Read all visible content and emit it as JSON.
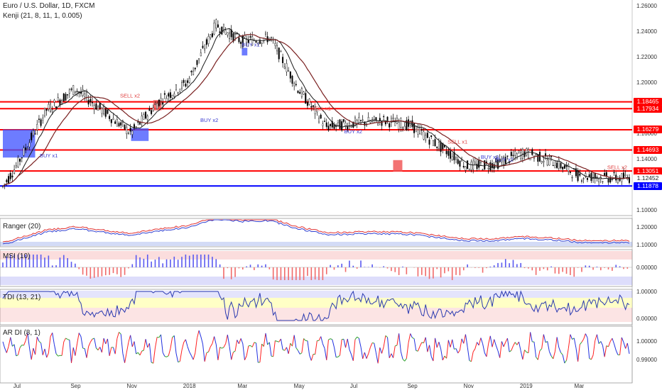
{
  "header": {
    "symbol_title": "Euro / U.S. Dollar, 1D, FXCM",
    "indicator_title": "Kenji (21, 8, 11, 1, 0.005)"
  },
  "colors": {
    "red": "#ff0000",
    "blue": "#0000ff",
    "candle": "#000000",
    "panel_border": "#888888"
  },
  "main": {
    "axis_ticks": [
      "1.26000",
      "1.24000",
      "1.22000",
      "1.20000",
      "1.18000",
      "1.16000",
      "1.14000",
      "1.12000",
      "1.10000"
    ],
    "level_tags": [
      {
        "label": "1.18465",
        "color": "#ff0000"
      },
      {
        "label": "1.17934",
        "color": "#ff0000"
      },
      {
        "label": "1.16279",
        "color": "#ff0000"
      },
      {
        "label": "1.14693",
        "color": "#ff0000"
      },
      {
        "label": "1.13051",
        "color": "#ff0000"
      },
      {
        "label": "1.12452",
        "color": "#ffffff"
      },
      {
        "label": "1.11878",
        "color": "#0000ff"
      }
    ],
    "signals": [
      "SELL x2",
      "BUY x1",
      "BUY x2",
      "SELL x1",
      "BUY x3",
      "SELL x3"
    ]
  },
  "panels": [
    {
      "title": "Ranger (20)",
      "ticks": [
        "1.20000",
        "1.10000"
      ]
    },
    {
      "title": "MSI (10)",
      "ticks": [
        "0.00000"
      ]
    },
    {
      "title": "TDI (13, 21)",
      "ticks": [
        "1.00000",
        "0.00000"
      ]
    },
    {
      "title": "AR DI (8, 1)",
      "ticks": [
        "1.00000",
        "0.99000"
      ]
    }
  ],
  "x_axis": [
    "Jul",
    "Sep",
    "Nov",
    "2018",
    "Mar",
    "May",
    "Jul",
    "Sep",
    "Nov",
    "2019",
    "Mar"
  ],
  "chart_data": {
    "type": "line",
    "title": "Euro / U.S. Dollar, 1D, FXCM",
    "x": [
      "2017-06-15",
      "2017-07-01",
      "2017-08-01",
      "2017-09-01",
      "2017-10-01",
      "2017-11-01",
      "2017-12-01",
      "2018-01-01",
      "2018-02-01",
      "2018-03-01",
      "2018-04-01",
      "2018-05-01",
      "2018-06-01",
      "2018-07-01",
      "2018-08-01",
      "2018-09-01",
      "2018-10-01",
      "2018-11-01",
      "2018-12-01",
      "2019-01-01",
      "2019-02-01",
      "2019-03-01",
      "2019-04-01",
      "2019-04-25"
    ],
    "series": [
      {
        "values": [
          1.118,
          1.136,
          1.178,
          1.195,
          1.178,
          1.16,
          1.185,
          1.2,
          1.245,
          1.232,
          1.235,
          1.195,
          1.165,
          1.168,
          1.17,
          1.166,
          1.15,
          1.134,
          1.136,
          1.145,
          1.138,
          1.127,
          1.125,
          1.125
        ]
      }
    ],
    "ylim": [
      1.095,
      1.263
    ],
    "horizontal_levels": [
      1.18465,
      1.17934,
      1.16279,
      1.14693,
      1.13051,
      1.11878
    ],
    "grid": false
  }
}
